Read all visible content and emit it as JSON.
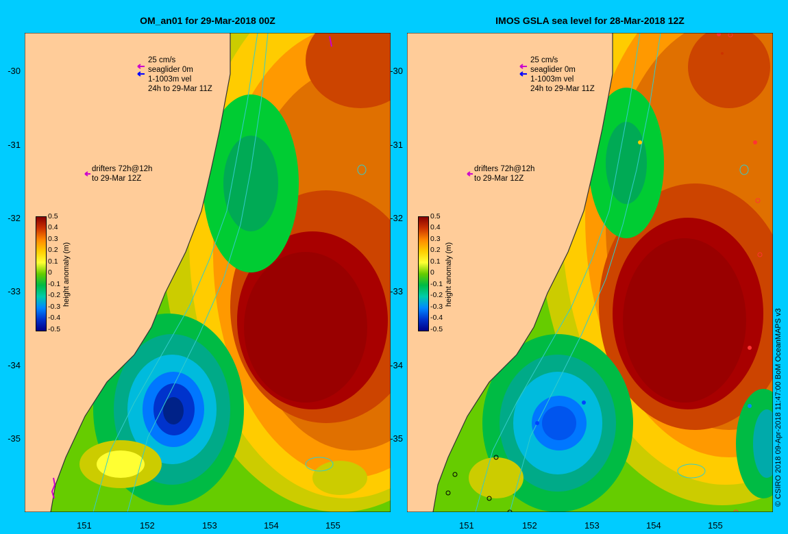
{
  "panels": [
    {
      "id": "left",
      "title": "OM_an01 for 29-Mar-2018 00Z",
      "legend": {
        "scale_label": "25 cm/s",
        "seaglider_label": "seaglider 0m",
        "velocity_label": "1-1003m vel",
        "window_label": "24h to 29-Mar 11Z",
        "drifters_line1": "drifters 72h@12h",
        "drifters_line2": "to 29-Mar 12Z"
      },
      "colorbar": {
        "title": "height anomaly (m)",
        "ticks": [
          "0.5",
          "0.4",
          "0.3",
          "0.2",
          "0.1",
          "0",
          "-0.1",
          "-0.2",
          "-0.3",
          "-0.4",
          "-0.5"
        ]
      }
    },
    {
      "id": "right",
      "title": "IMOS GSLA sea level  for 28-Mar-2018 12Z",
      "legend": {
        "scale_label": "25 cm/s",
        "seaglider_label": "seaglider 0m",
        "velocity_label": "1-1003m vel",
        "window_label": "24h to 29-Mar 11Z",
        "drifters_line1": "drifters 72h@12h",
        "drifters_line2": "to 29-Mar 12Z"
      },
      "colorbar": {
        "title": "height anomaly (m)",
        "ticks": [
          "0.5",
          "0.4",
          "0.3",
          "0.2",
          "0.1",
          "0",
          "-0.1",
          "-0.2",
          "-0.3",
          "-0.4",
          "-0.5"
        ]
      }
    }
  ],
  "axes": {
    "y_ticks": [
      "-30",
      "-31",
      "-32",
      "-33",
      "-34",
      "-35"
    ],
    "x_ticks": [
      "151",
      "152",
      "153",
      "154",
      "155"
    ]
  },
  "credit": "© CSIRO 2018  09-Apr-2018 11:47:00 BoM OceanMAPS v3",
  "colors": {
    "background": "#00ccff",
    "land": "#ffcc99",
    "shelf": "#c8a880",
    "contour": "#33cccc"
  }
}
